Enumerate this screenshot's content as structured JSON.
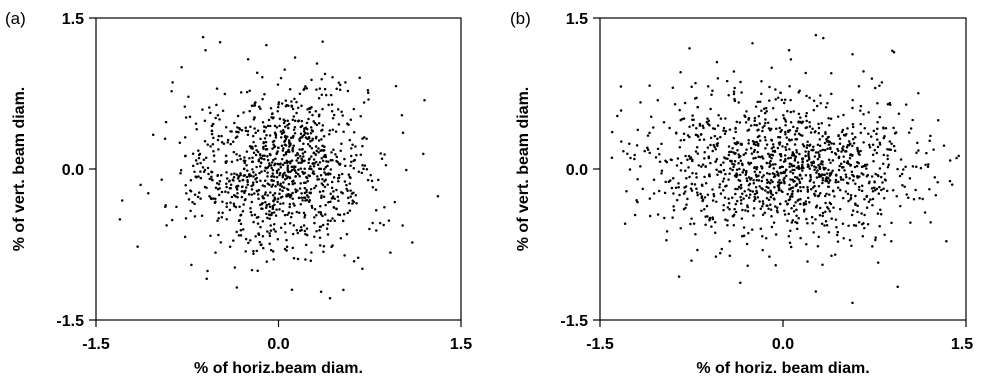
{
  "chart_data": [
    {
      "type": "scatter",
      "panel_label": "(a)",
      "xlabel": "% of horiz.beam diam.",
      "ylabel": "% of vert. beam diam.",
      "xlim": [
        -1.5,
        1.5
      ],
      "ylim": [
        -1.5,
        1.5
      ],
      "xticks": [
        -1.5,
        0.0,
        1.5
      ],
      "yticks": [
        1.5,
        0.0,
        -1.5
      ],
      "xtick_labels": [
        "-1.5",
        "0.0",
        "1.5"
      ],
      "ytick_labels": [
        "1.5",
        "0.0",
        "-1.5"
      ],
      "grid": false,
      "cloud": {
        "n": 1100,
        "sx": 0.38,
        "sy": 0.4,
        "cx": 0.0,
        "cy": -0.02,
        "seed": 17
      },
      "points": [
        [
          -0.62,
          1.31
        ],
        [
          -0.48,
          1.26
        ],
        [
          -0.6,
          1.18
        ],
        [
          -0.25,
          1.09
        ],
        [
          -0.87,
          0.86
        ],
        [
          -1.03,
          0.34
        ],
        [
          -1.07,
          -0.24
        ],
        [
          1.19,
          0.15
        ],
        [
          1.05,
          -0.01
        ],
        [
          1.31,
          -0.27
        ],
        [
          1.1,
          -0.73
        ],
        [
          -0.59,
          -1.09
        ],
        [
          0.11,
          -1.2
        ],
        [
          0.35,
          -1.22
        ],
        [
          0.69,
          -0.99
        ],
        [
          -0.92,
          -0.56
        ],
        [
          0.92,
          -0.83
        ],
        [
          -0.77,
          0.62
        ],
        [
          0.74,
          0.69
        ],
        [
          0.55,
          0.86
        ]
      ]
    },
    {
      "type": "scatter",
      "panel_label": "(b)",
      "xlabel": "% of horiz. beam diam.",
      "ylabel": "% of vert. beam diam.",
      "xlim": [
        -1.5,
        1.5
      ],
      "ylim": [
        -1.5,
        1.5
      ],
      "xticks": [
        -1.5,
        0.0,
        1.5
      ],
      "yticks": [
        1.5,
        0.0,
        -1.5
      ],
      "xtick_labels": [
        "-1.5",
        "0.0",
        "1.5"
      ],
      "ytick_labels": [
        "1.5",
        "0.0",
        "-1.5"
      ],
      "grid": false,
      "cloud": {
        "n": 1300,
        "sx": 0.58,
        "sy": 0.36,
        "cx": 0.0,
        "cy": 0.02,
        "seed": 91
      },
      "points": [
        [
          0.27,
          1.33
        ],
        [
          0.33,
          1.3
        ],
        [
          -0.25,
          1.25
        ],
        [
          0.05,
          1.18
        ],
        [
          0.57,
          1.14
        ],
        [
          0.91,
          1.16
        ],
        [
          1.44,
          0.13
        ],
        [
          1.21,
          -0.53
        ],
        [
          -1.26,
          0.25
        ],
        [
          -1.2,
          -0.31
        ],
        [
          -0.95,
          -0.62
        ],
        [
          -0.35,
          -1.13
        ],
        [
          0.57,
          -1.33
        ],
        [
          0.94,
          -1.17
        ],
        [
          1.01,
          0.64
        ],
        [
          -0.72,
          0.7
        ],
        [
          -1.08,
          0.52
        ],
        [
          1.12,
          -0.29
        ],
        [
          0.78,
          -0.93
        ],
        [
          -0.55,
          -0.87
        ]
      ]
    }
  ]
}
